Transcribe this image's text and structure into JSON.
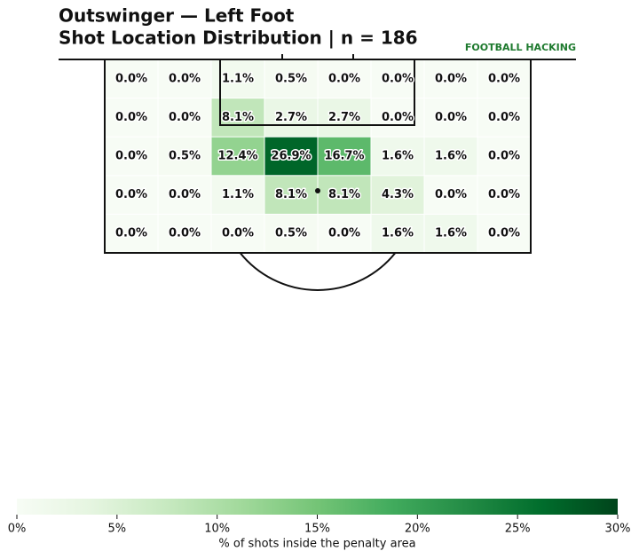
{
  "chart_data": {
    "type": "heatmap",
    "title": "Outswinger — Left Foot",
    "subtitle": "Shot Location Distribution | n = 186",
    "brand": "FOOTBALL HACKING",
    "colormap": "Greens",
    "values": [
      [
        0.0,
        0.0,
        1.1,
        0.5,
        0.0,
        0.0,
        0.0,
        0.0
      ],
      [
        0.0,
        0.0,
        8.1,
        2.7,
        2.7,
        0.0,
        0.0,
        0.0
      ],
      [
        0.0,
        0.5,
        12.4,
        26.9,
        16.7,
        1.6,
        1.6,
        0.0
      ],
      [
        0.0,
        0.0,
        1.1,
        8.1,
        8.1,
        4.3,
        0.0,
        0.0
      ],
      [
        0.0,
        0.0,
        0.0,
        0.5,
        0.0,
        1.6,
        1.6,
        0.0
      ]
    ],
    "value_labels": [
      [
        "0.0%",
        "0.0%",
        "1.1%",
        "0.5%",
        "0.0%",
        "0.0%",
        "0.0%",
        "0.0%"
      ],
      [
        "0.0%",
        "0.0%",
        "8.1%",
        "2.7%",
        "2.7%",
        "0.0%",
        "0.0%",
        "0.0%"
      ],
      [
        "0.0%",
        "0.5%",
        "12.4%",
        "26.9%",
        "16.7%",
        "1.6%",
        "1.6%",
        "0.0%"
      ],
      [
        "0.0%",
        "0.0%",
        "1.1%",
        "8.1%",
        "8.1%",
        "4.3%",
        "0.0%",
        "0.0%"
      ],
      [
        "0.0%",
        "0.0%",
        "0.0%",
        "0.5%",
        "0.0%",
        "1.6%",
        "1.6%",
        "0.0%"
      ]
    ],
    "zlim": [
      0,
      30
    ],
    "zticks": [
      {
        "value": 0,
        "label": "0%"
      },
      {
        "value": 5,
        "label": "5%"
      },
      {
        "value": 10,
        "label": "10%"
      },
      {
        "value": 15,
        "label": "15%"
      },
      {
        "value": 20,
        "label": "20%"
      },
      {
        "value": 25,
        "label": "25%"
      },
      {
        "value": 30,
        "label": "30%"
      }
    ],
    "colorbar_label": "% of shots inside the penalty area"
  }
}
